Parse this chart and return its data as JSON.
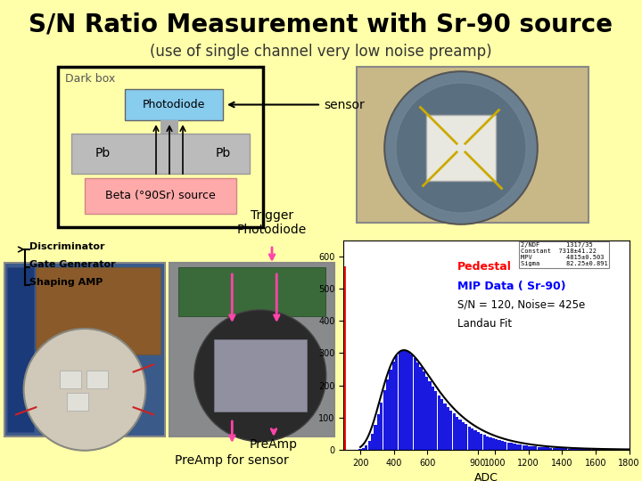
{
  "bg_color": "#FFFFAA",
  "title": "S/N Ratio Measurement with Sr-90 source",
  "subtitle": "(use of single channel very low noise preamp)",
  "title_fontsize": 20,
  "subtitle_fontsize": 12,
  "title_color": "#000000",
  "subtitle_color": "#333333",
  "darkbox_label": "Dark box",
  "photodiode_label": "Photodiode",
  "pb_left_label": "Pb",
  "pb_right_label": "Pb",
  "beta_label": "Beta (°90Sr) source",
  "sensor_label": "sensor",
  "discriminator_label": "Discriminator",
  "gate_label": "Gate Generator",
  "shaping_label": "Shaping AMP",
  "trigger_label": "Trigger\nPhotodiode",
  "preamp_label": "PreAmp",
  "preamp2_label": "PreAmp for sensor",
  "photodiode_color": "#88CCEE",
  "pb_color": "#BBBBBB",
  "beta_color": "#FFAAAA",
  "box_edge_color": "#000000",
  "hist_pedestal_label": "Pedestal",
  "hist_mip_label": "MIP Data ( Sr-90)",
  "hist_sn_label": "S/N = 120, Noise= 425e",
  "hist_landau_label": "Landau Fit",
  "legend_lines": [
    "2/NDF",
    "Constant",
    "MPV",
    "Sigma"
  ],
  "legend_vals": [
    "1317/35",
    "7318±41.22",
    "4815±0.503",
    "82.25±0.891"
  ]
}
